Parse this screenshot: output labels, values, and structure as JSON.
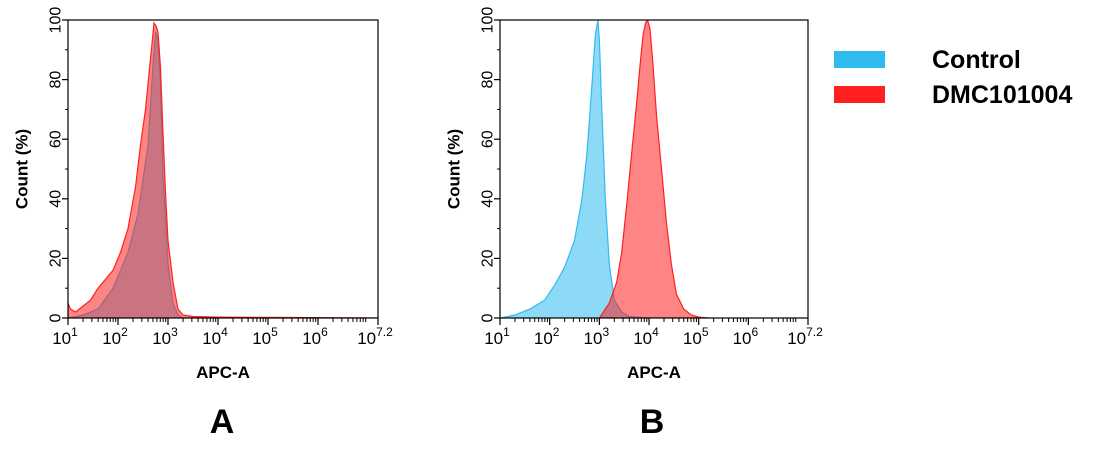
{
  "colors": {
    "control": "#2fbbee",
    "sample": "#ff2020",
    "overlap": "#7a8fa8"
  },
  "legend": [
    {
      "label": "Control",
      "color": "#2fbbee"
    },
    {
      "label": "DMC101004",
      "color": "#ff2020"
    }
  ],
  "chart_data": [
    {
      "type": "area",
      "panel_label": "A",
      "xlabel": "APC-A",
      "ylabel": "Count  (%)",
      "x_scale": "log10",
      "xlim": [
        1,
        7.2
      ],
      "ylim": [
        0,
        100
      ],
      "x_ticks": [
        {
          "base": "10",
          "exp": "1",
          "pos": 1
        },
        {
          "base": "10",
          "exp": "2",
          "pos": 2
        },
        {
          "base": "10",
          "exp": "3",
          "pos": 3
        },
        {
          "base": "10",
          "exp": "4",
          "pos": 4
        },
        {
          "base": "10",
          "exp": "5",
          "pos": 5
        },
        {
          "base": "10",
          "exp": "6",
          "pos": 6
        },
        {
          "base": "10",
          "exp": "7.2",
          "pos": 7.2
        }
      ],
      "y_ticks": [
        "0",
        "20",
        "40",
        "60",
        "80",
        "100"
      ],
      "series": [
        {
          "name": "Control",
          "color": "#2fbbee",
          "x": [
            1.0,
            1.3,
            1.6,
            1.9,
            2.2,
            2.4,
            2.6,
            2.7,
            2.75,
            2.8,
            2.85,
            2.9,
            3.0,
            3.1,
            3.2,
            3.3,
            3.5
          ],
          "y": [
            0,
            1,
            3,
            10,
            22,
            35,
            58,
            85,
            96,
            93,
            78,
            48,
            18,
            5,
            1,
            0,
            0
          ]
        },
        {
          "name": "DMC101004",
          "color": "#ff2020",
          "x": [
            1.0,
            1.05,
            1.15,
            1.3,
            1.45,
            1.6,
            1.75,
            1.9,
            2.05,
            2.2,
            2.35,
            2.45,
            2.55,
            2.62,
            2.68,
            2.72,
            2.76,
            2.8,
            2.85,
            2.9,
            2.95,
            3.0,
            3.1,
            3.2,
            3.3,
            3.5,
            4.0,
            5.0,
            7.2
          ],
          "y": [
            5,
            3,
            2,
            4,
            6,
            10,
            13,
            16,
            22,
            30,
            44,
            58,
            70,
            82,
            92,
            99,
            98,
            96,
            84,
            62,
            42,
            26,
            12,
            3,
            1,
            0.5,
            0.3,
            0.2,
            0
          ]
        }
      ]
    },
    {
      "type": "area",
      "panel_label": "B",
      "xlabel": "APC-A",
      "ylabel": "Count  (%)",
      "x_scale": "log10",
      "xlim": [
        1,
        7.2
      ],
      "ylim": [
        0,
        100
      ],
      "x_ticks": [
        {
          "base": "10",
          "exp": "1",
          "pos": 1
        },
        {
          "base": "10",
          "exp": "2",
          "pos": 2
        },
        {
          "base": "10",
          "exp": "3",
          "pos": 3
        },
        {
          "base": "10",
          "exp": "4",
          "pos": 4
        },
        {
          "base": "10",
          "exp": "5",
          "pos": 5
        },
        {
          "base": "10",
          "exp": "6",
          "pos": 6
        },
        {
          "base": "10",
          "exp": "7.2",
          "pos": 7.2
        }
      ],
      "y_ticks": [
        "0",
        "20",
        "40",
        "60",
        "80",
        "100"
      ],
      "series": [
        {
          "name": "Control",
          "color": "#2fbbee",
          "x": [
            1.0,
            1.3,
            1.6,
            1.9,
            2.1,
            2.3,
            2.5,
            2.65,
            2.75,
            2.85,
            2.92,
            2.97,
            3.0,
            3.05,
            3.12,
            3.2,
            3.3,
            3.45,
            3.6,
            4.0
          ],
          "y": [
            0,
            1,
            3,
            6,
            11,
            17,
            26,
            40,
            55,
            78,
            95,
            100,
            93,
            70,
            40,
            18,
            6,
            2,
            0.5,
            0
          ]
        },
        {
          "name": "DMC101004",
          "color": "#ff2020",
          "x": [
            3.0,
            3.2,
            3.35,
            3.45,
            3.55,
            3.65,
            3.75,
            3.82,
            3.88,
            3.93,
            3.97,
            4.02,
            4.08,
            4.15,
            4.25,
            4.35,
            4.45,
            4.55,
            4.7,
            4.85,
            5.0,
            5.2
          ],
          "y": [
            0,
            5,
            12,
            22,
            38,
            55,
            72,
            85,
            95,
            99,
            100,
            97,
            85,
            68,
            50,
            32,
            18,
            8,
            3,
            1,
            0.3,
            0
          ]
        }
      ]
    }
  ]
}
